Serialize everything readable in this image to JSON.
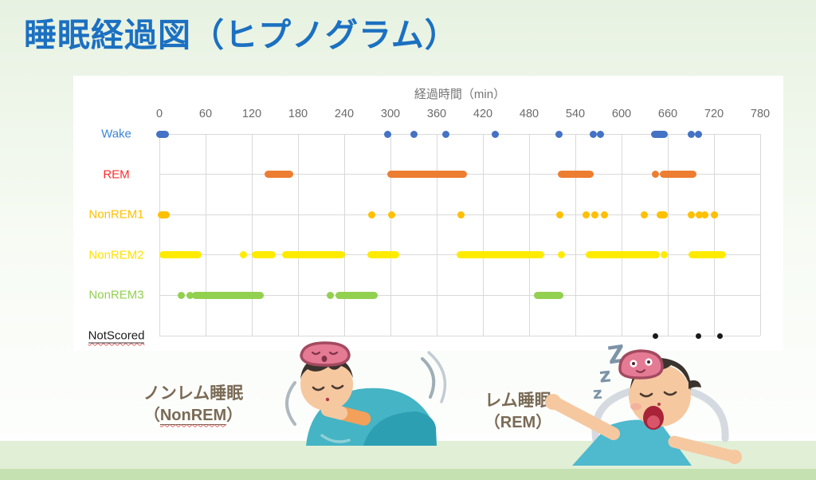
{
  "page": {
    "title": "睡眠経過図（ヒプノグラム）",
    "title_color": "#1B70C1"
  },
  "chart_data": {
    "type": "scatter",
    "title": "睡眠経過図（ヒプノグラム）",
    "xlabel": "経過時間（min）",
    "ylabel": "",
    "xlim": [
      0,
      780
    ],
    "x_ticks": [
      0,
      60,
      120,
      180,
      240,
      300,
      360,
      420,
      480,
      540,
      600,
      660,
      720,
      780
    ],
    "grid": true,
    "legend": "none",
    "categories": [
      "Wake",
      "REM",
      "NonREM1",
      "NonREM2",
      "NonREM3",
      "NotScored"
    ],
    "series": [
      {
        "name": "Wake",
        "color": "#4472C4",
        "label_color": "#3A86D8",
        "point_size": 9,
        "underline": false,
        "segments_min": [
          [
            0,
            8
          ],
          [
            296,
            296
          ],
          [
            331,
            331
          ],
          [
            372,
            372
          ],
          [
            436,
            436
          ],
          [
            519,
            519
          ],
          [
            563,
            563
          ],
          [
            573,
            573
          ],
          [
            643,
            655
          ],
          [
            690,
            690
          ],
          [
            700,
            700
          ]
        ]
      },
      {
        "name": "REM",
        "color": "#ED7D31",
        "label_color": "#FF2B2B",
        "point_size": 9,
        "underline": false,
        "segments_min": [
          [
            141,
            169
          ],
          [
            301,
            395
          ],
          [
            522,
            559
          ],
          [
            644,
            644
          ],
          [
            654,
            693
          ]
        ]
      },
      {
        "name": "NonREM1",
        "color": "#FFC000",
        "label_color": "#FFC000",
        "point_size": 9,
        "underline": false,
        "segments_min": [
          [
            3,
            9
          ],
          [
            276,
            276
          ],
          [
            302,
            302
          ],
          [
            392,
            392
          ],
          [
            520,
            520
          ],
          [
            554,
            554
          ],
          [
            565,
            565
          ],
          [
            578,
            578
          ],
          [
            629,
            629
          ],
          [
            650,
            655
          ],
          [
            691,
            691
          ],
          [
            701,
            701
          ],
          [
            708,
            708
          ],
          [
            720,
            720
          ]
        ]
      },
      {
        "name": "NonREM2",
        "color": "#FFEB00",
        "label_color": "#FFE100",
        "point_size": 9,
        "underline": false,
        "segments_min": [
          [
            5,
            50
          ],
          [
            109,
            109
          ],
          [
            125,
            146
          ],
          [
            164,
            236
          ],
          [
            275,
            307
          ],
          [
            390,
            495
          ],
          [
            522,
            522
          ],
          [
            558,
            645
          ],
          [
            655,
            655
          ],
          [
            692,
            731
          ]
        ]
      },
      {
        "name": "NonREM3",
        "color": "#92D050",
        "label_color": "#92D050",
        "point_size": 9,
        "underline": false,
        "segments_min": [
          [
            28,
            28
          ],
          [
            40,
            40
          ],
          [
            47,
            131
          ],
          [
            222,
            222
          ],
          [
            233,
            279
          ],
          [
            491,
            520
          ]
        ]
      },
      {
        "name": "NotScored",
        "color": "#1A1A1A",
        "label_color": "#1A1A1A",
        "point_size": 7,
        "underline": true,
        "segments_min": [
          [
            644,
            644
          ],
          [
            700,
            700
          ],
          [
            728,
            728
          ]
        ]
      }
    ]
  },
  "captions": {
    "color": "#7A6A55",
    "nonrem": {
      "line1": "ノンレム睡眠",
      "open": "（",
      "name": "NonREM",
      "close": "）"
    },
    "rem": {
      "line1": "レム睡眠",
      "line2": "（REM）"
    }
  },
  "zzz": [
    "Z",
    "z",
    "z"
  ]
}
